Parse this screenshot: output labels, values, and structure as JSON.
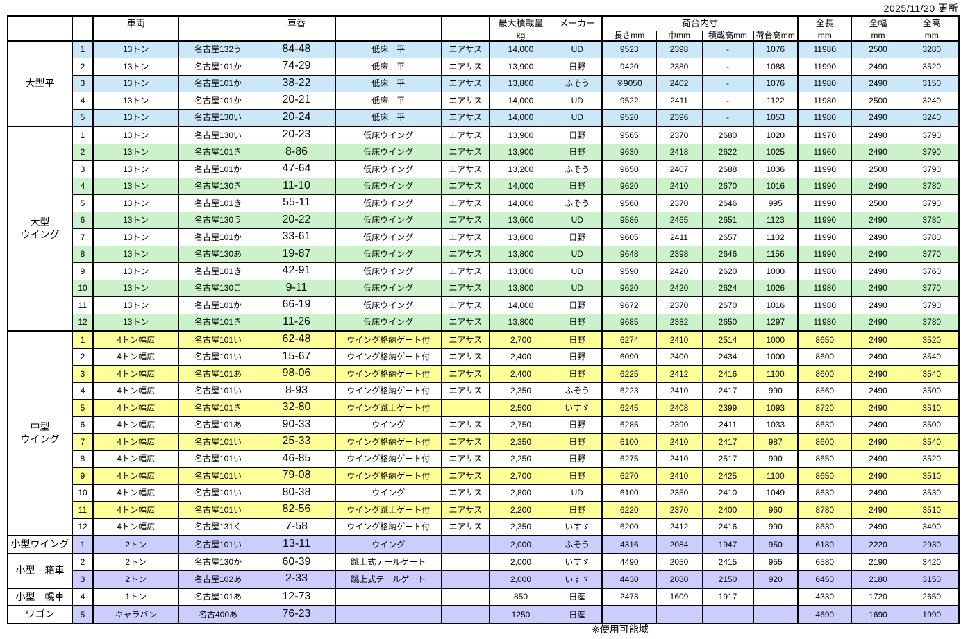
{
  "meta": {
    "updated": "2025/11/20 更新",
    "footnote": "※使用可能域"
  },
  "colors": {
    "blue": "#cce8f8",
    "green": "#ccf2cc",
    "yellow": "#ffff99",
    "lavender": "#ccccff"
  },
  "header": {
    "vehicle": "車両",
    "number": "車番",
    "payload": "最大積載量",
    "payload_unit": "kg",
    "maker": "メーカー",
    "bed_inner": "荷台内寸",
    "bed_len": "長さmm",
    "bed_width": "巾mm",
    "load_height": "積載高mm",
    "bed_height": "荷台高mm",
    "total_len": "全長",
    "total_width": "全幅",
    "total_height": "全高",
    "mm": "mm"
  },
  "groups": [
    {
      "label": "大型平",
      "color": "#cce8f8",
      "rows": [
        [
          "1",
          "13トン",
          "名古屋132う",
          "84-48",
          "低床　平",
          "エアサス",
          "14,000",
          "UD",
          "9523",
          "2398",
          "-",
          "1076",
          "11980",
          "2500",
          "3280",
          1
        ],
        [
          "2",
          "13トン",
          "名古屋101か",
          "74-29",
          "低床　平",
          "エアサス",
          "13,900",
          "日野",
          "9420",
          "2380",
          "-",
          "1088",
          "11990",
          "2490",
          "3520",
          0
        ],
        [
          "3",
          "13トン",
          "名古屋101か",
          "38-22",
          "低床　平",
          "エアサス",
          "13,800",
          "ふそう",
          "※9050",
          "2402",
          "-",
          "1076",
          "11980",
          "2490",
          "3150",
          1
        ],
        [
          "4",
          "13トン",
          "名古屋101か",
          "20-21",
          "低床　平",
          "エアサス",
          "14,000",
          "UD",
          "9522",
          "2411",
          "-",
          "1122",
          "11980",
          "2500",
          "3240",
          0
        ],
        [
          "5",
          "13トン",
          "名古屋130い",
          "20-24",
          "低床　平",
          "エアサス",
          "14,000",
          "UD",
          "9520",
          "2396",
          "-",
          "1053",
          "11980",
          "2490",
          "3240",
          1
        ]
      ]
    },
    {
      "label": "大型\nウイング",
      "color": "#ccf2cc",
      "rows": [
        [
          "1",
          "13トン",
          "名古屋130い",
          "20-23",
          "低床ウイング",
          "エアサス",
          "13,900",
          "日野",
          "9565",
          "2370",
          "2680",
          "1020",
          "11970",
          "2490",
          "3790",
          0
        ],
        [
          "2",
          "13トン",
          "名古屋101き",
          "8-86",
          "低床ウイング",
          "エアサス",
          "13,900",
          "日野",
          "9630",
          "2418",
          "2622",
          "1025",
          "11960",
          "2490",
          "3790",
          1
        ],
        [
          "3",
          "13トン",
          "名古屋101か",
          "47-64",
          "低床ウイング",
          "エアサス",
          "13,200",
          "ふそう",
          "9650",
          "2407",
          "2688",
          "1036",
          "11990",
          "2500",
          "3790",
          0
        ],
        [
          "4",
          "13トン",
          "名古屋130き",
          "11-10",
          "低床ウイング",
          "エアサス",
          "14,000",
          "日野",
          "9620",
          "2410",
          "2670",
          "1016",
          "11990",
          "2490",
          "3780",
          1
        ],
        [
          "5",
          "13トン",
          "名古屋101き",
          "55-11",
          "低床ウイング",
          "エアサス",
          "14,000",
          "ふそう",
          "9560",
          "2370",
          "2646",
          "995",
          "11990",
          "2500",
          "3790",
          0
        ],
        [
          "6",
          "13トン",
          "名古屋130う",
          "20-22",
          "低床ウイング",
          "エアサス",
          "13,600",
          "UD",
          "9586",
          "2465",
          "2651",
          "1123",
          "11990",
          "2490",
          "3780",
          1
        ],
        [
          "7",
          "13トン",
          "名古屋101か",
          "33-61",
          "低床ウイング",
          "エアサス",
          "13,600",
          "日野",
          "9605",
          "2411",
          "2657",
          "1102",
          "11990",
          "2490",
          "3780",
          0
        ],
        [
          "8",
          "13トン",
          "名古屋130あ",
          "19-87",
          "低床ウイング",
          "エアサス",
          "13,800",
          "UD",
          "9648",
          "2398",
          "2646",
          "1156",
          "11990",
          "2490",
          "3770",
          1
        ],
        [
          "9",
          "13トン",
          "名古屋101き",
          "42-91",
          "低床ウイング",
          "エアサス",
          "13,800",
          "UD",
          "9590",
          "2420",
          "2620",
          "1000",
          "11980",
          "2490",
          "3760",
          0
        ],
        [
          "10",
          "13トン",
          "名古屋130こ",
          "9-11",
          "低床ウイング",
          "エアサス",
          "13,800",
          "UD",
          "9620",
          "2420",
          "2624",
          "1026",
          "11980",
          "2490",
          "3770",
          1
        ],
        [
          "11",
          "13トン",
          "名古屋101か",
          "66-19",
          "低床ウイング",
          "エアサス",
          "14,000",
          "日野",
          "9672",
          "2370",
          "2670",
          "1016",
          "11980",
          "2490",
          "3790",
          0
        ],
        [
          "12",
          "13トン",
          "名古屋101き",
          "11-26",
          "低床ウイング",
          "エアサス",
          "13,800",
          "日野",
          "9685",
          "2382",
          "2650",
          "1297",
          "11980",
          "2490",
          "3780",
          1
        ]
      ]
    },
    {
      "label": "中型\nウイング",
      "color": "#ffff99",
      "rows": [
        [
          "1",
          "4トン幅広",
          "名古屋101い",
          "62-48",
          "ウイング格納ゲート付",
          "エアサス",
          "2,700",
          "日野",
          "6274",
          "2410",
          "2514",
          "1000",
          "8650",
          "2490",
          "3520",
          1
        ],
        [
          "2",
          "4トン幅広",
          "名古屋101い",
          "15-67",
          "ウイング格納ゲート付",
          "エアサス",
          "2,400",
          "日野",
          "6090",
          "2400",
          "2434",
          "1000",
          "8600",
          "2490",
          "3540",
          0
        ],
        [
          "3",
          "4トン幅広",
          "名古屋101あ",
          "98-06",
          "ウイング格納ゲート付",
          "エアサス",
          "2,400",
          "日野",
          "6225",
          "2412",
          "2416",
          "1100",
          "8600",
          "2490",
          "3540",
          1
        ],
        [
          "4",
          "4トン幅広",
          "名古屋101い",
          "8-93",
          "ウイング格納ゲート付",
          "エアサス",
          "2,350",
          "ふそう",
          "6223",
          "2410",
          "2417",
          "990",
          "8560",
          "2490",
          "3500",
          0
        ],
        [
          "5",
          "4トン幅広",
          "名古屋101き",
          "32-80",
          "ウイング跳上ゲート付",
          "",
          "2,500",
          "いすゞ",
          "6245",
          "2408",
          "2399",
          "1093",
          "8720",
          "2490",
          "3510",
          1
        ],
        [
          "6",
          "4トン幅広",
          "名古屋101あ",
          "90-33",
          "ウイング",
          "エアサス",
          "2,750",
          "日野",
          "6285",
          "2390",
          "2411",
          "1033",
          "8630",
          "2490",
          "3500",
          0
        ],
        [
          "7",
          "4トン幅広",
          "名古屋101い",
          "25-33",
          "ウイング格納ゲート付",
          "エアサス",
          "2,350",
          "日野",
          "6100",
          "2410",
          "2417",
          "987",
          "8600",
          "2490",
          "3540",
          1
        ],
        [
          "8",
          "4トン幅広",
          "名古屋101い",
          "46-85",
          "ウイング格納ゲート付",
          "エアサス",
          "2,250",
          "日野",
          "6275",
          "2410",
          "2517",
          "990",
          "8650",
          "2490",
          "3520",
          0
        ],
        [
          "9",
          "4トン幅広",
          "名古屋101い",
          "79-08",
          "ウイング格納ゲート付",
          "エアサス",
          "2,700",
          "日野",
          "6270",
          "2410",
          "2425",
          "1100",
          "8650",
          "2490",
          "3510",
          1
        ],
        [
          "10",
          "4トン幅広",
          "名古屋101い",
          "80-38",
          "ウイング",
          "エアサス",
          "2,800",
          "UD",
          "6100",
          "2350",
          "2410",
          "1049",
          "8630",
          "2490",
          "3530",
          0
        ],
        [
          "11",
          "4トン幅広",
          "名古屋101い",
          "82-56",
          "ウイング跳上ゲート付",
          "エアサス",
          "2,200",
          "日野",
          "6220",
          "2370",
          "2400",
          "960",
          "8780",
          "2490",
          "3510",
          1
        ],
        [
          "12",
          "4トン幅広",
          "名古屋131く",
          "7-58",
          "ウイング格納ゲート付",
          "エアサス",
          "2,350",
          "いすゞ",
          "6200",
          "2412",
          "2416",
          "990",
          "8630",
          "2490",
          "3490",
          0
        ]
      ]
    },
    {
      "label": "小型ウイング",
      "color": "#ccccff",
      "rows": [
        [
          "1",
          "2トン",
          "名古屋101い",
          "13-11",
          "ウイング",
          "",
          "2,000",
          "ふそう",
          "4316",
          "2084",
          "1947",
          "950",
          "6180",
          "2220",
          "2930",
          1
        ]
      ]
    },
    {
      "label": "小型　箱車",
      "color": "#ccccff",
      "rows": [
        [
          "2",
          "2トン",
          "名古屋130か",
          "60-39",
          "跳上式テールゲート",
          "",
          "2,000",
          "いすゞ",
          "4490",
          "2050",
          "2415",
          "955",
          "6580",
          "2190",
          "3420",
          0
        ],
        [
          "3",
          "2トン",
          "名古屋102あ",
          "2-33",
          "跳上式テールゲート",
          "",
          "2,000",
          "いすゞ",
          "4430",
          "2080",
          "2150",
          "920",
          "6450",
          "2180",
          "3150",
          1
        ]
      ]
    },
    {
      "label": "小型　幌車",
      "color": "#ccccff",
      "rows": [
        [
          "4",
          "1トン",
          "名古屋101あ",
          "12-73",
          "",
          "",
          "850",
          "日産",
          "2473",
          "1609",
          "1917",
          "",
          "4330",
          "1720",
          "2650",
          0
        ]
      ]
    },
    {
      "label": "ワゴン",
      "color": "#ccccff",
      "rows": [
        [
          "5",
          "キャラバン",
          "名古400あ",
          "76-23",
          "",
          "",
          "1250",
          "日産",
          "",
          "",
          "",
          "",
          "4690",
          "1690",
          "1990",
          1
        ]
      ]
    }
  ]
}
